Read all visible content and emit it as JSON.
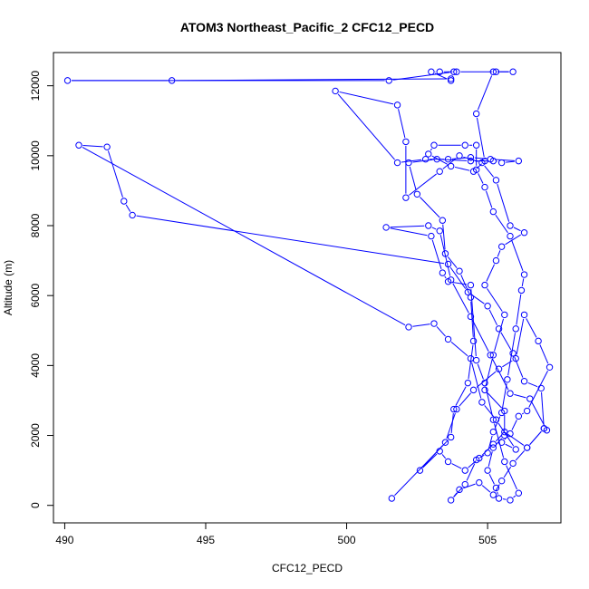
{
  "chart_data": {
    "type": "line",
    "title": "ATOM3 Northeast_Pacific_2 CFC12_PECD",
    "xlabel": "CFC12_PECD",
    "ylabel": "Altitude (m)",
    "xlim": [
      489.6,
      507.6
    ],
    "ylim": [
      -500,
      12950
    ],
    "x_ticks": [
      490,
      495,
      500,
      505
    ],
    "y_ticks": [
      0,
      2000,
      4000,
      6000,
      8000,
      10000,
      12000
    ],
    "x_tick_labels": [
      "490",
      "495",
      "500",
      "505"
    ],
    "y_tick_labels": [
      "0",
      "2000",
      "4000",
      "6000",
      "8000",
      "10000",
      "12000"
    ],
    "color": "#0000ff",
    "marker": "open-circle",
    "series": [
      {
        "points": [
          [
            501.6,
            200
          ],
          [
            503.7,
            1950
          ],
          [
            503.8,
            2750
          ],
          [
            504.3,
            3500
          ],
          [
            504.5,
            4700
          ],
          [
            504.4,
            5950
          ],
          [
            504.0,
            6700
          ],
          [
            503.5,
            7200
          ],
          [
            503.4,
            8150
          ],
          [
            502.5,
            8900
          ],
          [
            502.2,
            9800
          ],
          [
            503.2,
            9900
          ],
          [
            504.4,
            9850
          ],
          [
            505.2,
            9850
          ],
          [
            505.5,
            9800
          ],
          [
            506.1,
            9850
          ],
          [
            505.1,
            9900
          ],
          [
            504.4,
            9950
          ],
          [
            503.6,
            9900
          ],
          [
            502.8,
            9900
          ],
          [
            501.8,
            9800
          ],
          [
            499.6,
            11850
          ],
          [
            501.8,
            11450
          ],
          [
            502.1,
            10400
          ],
          [
            502.1,
            8800
          ],
          [
            503.3,
            9550
          ],
          [
            504.0,
            10000
          ],
          [
            504.8,
            9800
          ],
          [
            505.3,
            9300
          ],
          [
            505.8,
            8000
          ],
          [
            506.3,
            7800
          ],
          [
            505.5,
            7400
          ],
          [
            505.3,
            7000
          ],
          [
            504.9,
            6300
          ],
          [
            505.6,
            5450
          ],
          [
            505.2,
            4300
          ],
          [
            504.9,
            3300
          ],
          [
            505.6,
            2700
          ],
          [
            505.6,
            2000
          ],
          [
            505.2,
            1650
          ],
          [
            505.0,
            1000
          ],
          [
            505.3,
            500
          ],
          [
            505.4,
            200
          ],
          [
            505.8,
            150
          ],
          [
            506.1,
            350
          ],
          [
            505.6,
            1250
          ],
          [
            505.2,
            2450
          ],
          [
            504.9,
            3500
          ],
          [
            504.6,
            4150
          ],
          [
            504.4,
            6300
          ],
          [
            503.6,
            6400
          ],
          [
            503.4,
            6650
          ],
          [
            503.0,
            7700
          ],
          [
            501.4,
            7950
          ],
          [
            502.9,
            8000
          ],
          [
            503.3,
            7850
          ],
          [
            503.7,
            6450
          ],
          [
            504.4,
            5400
          ],
          [
            505.1,
            4300
          ],
          [
            505.8,
            3200
          ],
          [
            506.5,
            3050
          ],
          [
            507.1,
            2150
          ],
          [
            507.0,
            2200
          ],
          [
            506.4,
            1650
          ],
          [
            505.6,
            2100
          ],
          [
            505.2,
            1750
          ],
          [
            504.7,
            1350
          ],
          [
            504.2,
            1000
          ],
          [
            503.6,
            1250
          ],
          [
            503.3,
            1550
          ],
          [
            502.6,
            1000
          ],
          [
            503.5,
            1800
          ],
          [
            503.9,
            2750
          ],
          [
            504.5,
            3300
          ],
          [
            505.4,
            3900
          ],
          [
            506.0,
            4200
          ],
          [
            506.3,
            5450
          ],
          [
            506.8,
            4700
          ],
          [
            507.2,
            3950
          ],
          [
            506.4,
            2700
          ],
          [
            506.1,
            2550
          ],
          [
            505.8,
            2050
          ],
          [
            505.5,
            1800
          ],
          [
            506.0,
            1600
          ],
          [
            505.3,
            2450
          ],
          [
            504.8,
            2950
          ],
          [
            504.4,
            4200
          ],
          [
            503.6,
            4750
          ],
          [
            503.1,
            5200
          ],
          [
            502.2,
            5100
          ],
          [
            490.5,
            10300
          ],
          [
            491.5,
            10250
          ],
          [
            492.1,
            8700
          ],
          [
            492.4,
            8300
          ],
          [
            503.6,
            6900
          ],
          [
            504.3,
            6100
          ],
          [
            505.0,
            5700
          ],
          [
            505.4,
            5050
          ],
          [
            505.9,
            4350
          ],
          [
            506.3,
            3550
          ],
          [
            506.9,
            3350
          ],
          [
            507.0,
            2200
          ],
          [
            506.4,
            1650
          ],
          [
            505.9,
            1200
          ],
          [
            505.5,
            700
          ],
          [
            505.2,
            300
          ],
          [
            504.7,
            650
          ],
          [
            504.0,
            450
          ],
          [
            503.7,
            150
          ],
          [
            504.2,
            600
          ],
          [
            504.6,
            1300
          ],
          [
            505.0,
            1500
          ],
          [
            505.2,
            2100
          ],
          [
            505.5,
            2650
          ],
          [
            505.7,
            3600
          ],
          [
            506.0,
            5050
          ],
          [
            506.2,
            6150
          ],
          [
            506.3,
            6600
          ],
          [
            505.8,
            7700
          ],
          [
            505.2,
            8400
          ],
          [
            504.9,
            9100
          ],
          [
            504.6,
            9600
          ],
          [
            504.6,
            10300
          ],
          [
            504.2,
            10300
          ],
          [
            503.1,
            10300
          ],
          [
            502.9,
            10050
          ],
          [
            503.7,
            9700
          ],
          [
            504.5,
            9550
          ],
          [
            504.9,
            9850
          ],
          [
            504.6,
            11200
          ],
          [
            505.2,
            12400
          ],
          [
            505.9,
            12400
          ],
          [
            505.3,
            12400
          ],
          [
            503.9,
            12400
          ],
          [
            503.3,
            12400
          ],
          [
            503.0,
            12400
          ],
          [
            503.7,
            12150
          ],
          [
            503.8,
            12400
          ],
          [
            501.5,
            12150
          ],
          [
            490.1,
            12150
          ],
          [
            493.8,
            12150
          ],
          [
            503.7,
            12200
          ]
        ]
      }
    ]
  }
}
